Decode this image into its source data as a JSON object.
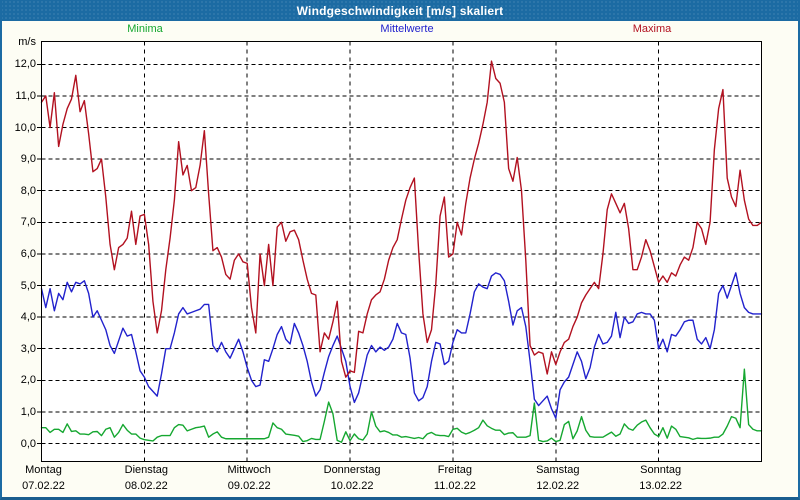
{
  "window": {
    "title": "Windgeschwindigkeit [m/s] skaliert"
  },
  "colors": {
    "titlebar": "#1c6ba3",
    "window_border": "#1c6ba3",
    "background": "#fdfdf4",
    "plot_background": "#ffffff",
    "grid": "#000000",
    "axis_text": "#000000",
    "minima": "#15a730",
    "mittelwerte": "#2222cd",
    "maxima": "#b21120"
  },
  "chart_data": {
    "type": "line",
    "title": "Windgeschwindigkeit [m/s] skaliert",
    "ylabel": "m/s",
    "ylim": [
      0,
      12
    ],
    "grid": "dashed",
    "legend_position": "top",
    "sample_interval_hours": 1,
    "y_ticks": [
      {
        "value": 0,
        "label": "0,0"
      },
      {
        "value": 1,
        "label": "1,0"
      },
      {
        "value": 2,
        "label": "2,0"
      },
      {
        "value": 3,
        "label": "3,0"
      },
      {
        "value": 4,
        "label": "4,0"
      },
      {
        "value": 5,
        "label": "5,0"
      },
      {
        "value": 6,
        "label": "6,0"
      },
      {
        "value": 7,
        "label": "7,0"
      },
      {
        "value": 8,
        "label": "8,0"
      },
      {
        "value": 9,
        "label": "9,0"
      },
      {
        "value": 10,
        "label": "10,0"
      },
      {
        "value": 11,
        "label": "11,0"
      },
      {
        "value": 12,
        "label": "12,0"
      }
    ],
    "x_days": [
      {
        "name": "Montag",
        "date": "07.02.22"
      },
      {
        "name": "Dienstag",
        "date": "08.02.22"
      },
      {
        "name": "Mittwoch",
        "date": "09.02.22"
      },
      {
        "name": "Donnerstag",
        "date": "10.02.22"
      },
      {
        "name": "Freitag",
        "date": "11.02.22"
      },
      {
        "name": "Samstag",
        "date": "12.02.22"
      },
      {
        "name": "Sonntag",
        "date": "13.02.22"
      }
    ],
    "series": [
      {
        "name": "Minima",
        "color": "#15a730",
        "values": [
          0.5,
          0.5,
          0.35,
          0.45,
          0.45,
          0.35,
          0.62,
          0.38,
          0.4,
          0.3,
          0.3,
          0.28,
          0.37,
          0.38,
          0.25,
          0.45,
          0.5,
          0.2,
          0.35,
          0.6,
          0.42,
          0.3,
          0.3,
          0.17,
          0.12,
          0.1,
          0.08,
          0.2,
          0.25,
          0.25,
          0.25,
          0.5,
          0.6,
          0.58,
          0.4,
          0.45,
          0.5,
          0.52,
          0.55,
          0.2,
          0.3,
          0.37,
          0.2,
          0.15,
          0.15,
          0.15,
          0.15,
          0.15,
          0.15,
          0.15,
          0.15,
          0.15,
          0.15,
          0.2,
          0.65,
          0.5,
          0.45,
          0.3,
          0.28,
          0.26,
          0.23,
          0.06,
          0.09,
          0.16,
          0.13,
          0.13,
          0.7,
          1.31,
          0.94,
          0.1,
          0.04,
          0.37,
          0.09,
          0.3,
          0.15,
          0.11,
          0.3,
          1.0,
          0.55,
          0.37,
          0.4,
          0.35,
          0.27,
          0.27,
          0.2,
          0.22,
          0.19,
          0.16,
          0.19,
          0.15,
          0.3,
          0.35,
          0.27,
          0.25,
          0.25,
          0.22,
          0.45,
          0.48,
          0.36,
          0.3,
          0.35,
          0.42,
          0.5,
          0.74,
          0.56,
          0.48,
          0.42,
          0.42,
          0.28,
          0.33,
          0.34,
          0.2,
          0.2,
          0.2,
          0.25,
          1.28,
          0.1,
          0.06,
          0.08,
          0.17,
          0.06,
          0.1,
          0.6,
          0.7,
          0.15,
          0.4,
          0.85,
          0.42,
          0.22,
          0.2,
          0.2,
          0.2,
          0.28,
          0.36,
          0.23,
          0.3,
          0.62,
          0.47,
          0.42,
          0.58,
          0.68,
          0.74,
          0.5,
          0.3,
          0.22,
          0.5,
          0.17,
          0.55,
          0.45,
          0.22,
          0.2,
          0.18,
          0.13,
          0.17,
          0.16,
          0.16,
          0.17,
          0.2,
          0.2,
          0.3,
          0.55,
          0.85,
          0.8,
          0.5,
          2.35,
          0.6,
          0.45,
          0.4,
          0.4
        ]
      },
      {
        "name": "Mittelwerte",
        "color": "#2222cd",
        "values": [
          4.9,
          4.3,
          4.9,
          4.2,
          4.75,
          4.55,
          5.1,
          4.8,
          5.1,
          5.05,
          5.15,
          4.75,
          4.0,
          4.2,
          3.9,
          3.6,
          3.1,
          2.85,
          3.25,
          3.65,
          3.4,
          3.45,
          2.9,
          2.3,
          2.1,
          1.8,
          1.65,
          1.5,
          2.2,
          3.0,
          3.0,
          3.5,
          4.1,
          4.3,
          4.1,
          4.15,
          4.2,
          4.25,
          4.4,
          4.4,
          3.1,
          2.9,
          3.2,
          2.9,
          2.7,
          3.0,
          3.3,
          2.9,
          2.4,
          2.0,
          1.8,
          1.85,
          2.65,
          2.6,
          3.0,
          3.45,
          3.7,
          3.3,
          3.15,
          3.8,
          3.5,
          3.1,
          2.6,
          1.95,
          1.5,
          1.7,
          2.25,
          2.75,
          3.1,
          3.4,
          3.0,
          2.6,
          1.8,
          1.3,
          1.6,
          2.2,
          2.8,
          3.1,
          2.9,
          3.05,
          2.95,
          3.05,
          3.3,
          3.8,
          3.5,
          3.45,
          2.7,
          1.6,
          1.35,
          1.45,
          1.8,
          2.6,
          3.2,
          3.15,
          2.5,
          2.6,
          3.2,
          3.6,
          3.5,
          3.5,
          4.1,
          4.8,
          5.05,
          4.95,
          4.9,
          5.3,
          5.4,
          5.35,
          5.15,
          4.5,
          3.75,
          4.2,
          4.3,
          3.7,
          2.6,
          1.4,
          1.2,
          1.35,
          1.5,
          1.1,
          0.8,
          1.7,
          1.95,
          2.1,
          2.5,
          2.9,
          2.6,
          2.05,
          2.4,
          3.05,
          3.45,
          3.15,
          3.2,
          3.4,
          4.15,
          3.35,
          4.0,
          3.8,
          3.85,
          4.1,
          4.15,
          4.1,
          4.1,
          3.9,
          3.0,
          3.3,
          2.9,
          3.45,
          3.4,
          3.6,
          3.85,
          3.9,
          3.9,
          3.3,
          3.15,
          3.35,
          3.0,
          3.6,
          4.75,
          5.0,
          4.6,
          5.0,
          5.4,
          4.75,
          4.3,
          4.15,
          4.1,
          4.1,
          4.1
        ]
      },
      {
        "name": "Maxima",
        "color": "#b21120",
        "values": [
          10.8,
          11.0,
          10.0,
          11.1,
          9.4,
          10.1,
          10.6,
          10.9,
          11.65,
          10.5,
          10.85,
          9.8,
          8.6,
          8.7,
          9.0,
          7.8,
          6.3,
          5.5,
          6.2,
          6.3,
          6.5,
          7.35,
          6.3,
          7.2,
          7.25,
          6.3,
          4.5,
          3.5,
          4.2,
          5.5,
          6.5,
          7.7,
          9.55,
          8.5,
          8.8,
          8.0,
          8.1,
          8.8,
          9.9,
          7.9,
          6.1,
          6.2,
          5.9,
          5.35,
          5.2,
          5.8,
          6.0,
          5.75,
          5.7,
          4.3,
          3.5,
          6.0,
          5.0,
          6.3,
          5.0,
          6.85,
          7.0,
          6.4,
          6.7,
          6.75,
          6.45,
          5.8,
          5.2,
          4.75,
          4.7,
          2.9,
          3.5,
          3.3,
          3.85,
          4.5,
          2.6,
          2.1,
          2.3,
          2.25,
          3.55,
          3.5,
          4.1,
          4.55,
          4.7,
          4.8,
          5.2,
          5.8,
          6.2,
          6.45,
          7.1,
          7.7,
          8.1,
          8.4,
          6.1,
          4.1,
          3.2,
          3.6,
          5.05,
          7.2,
          7.8,
          5.9,
          6.0,
          7.0,
          6.6,
          7.6,
          8.4,
          9.0,
          9.5,
          10.1,
          10.8,
          12.1,
          11.55,
          11.4,
          10.8,
          8.7,
          8.3,
          9.05,
          8.0,
          5.8,
          3.1,
          2.8,
          2.9,
          2.85,
          2.2,
          2.9,
          2.5,
          2.9,
          3.2,
          3.3,
          3.7,
          4.0,
          4.45,
          4.7,
          4.9,
          5.1,
          4.9,
          6.0,
          7.4,
          7.9,
          7.6,
          7.3,
          7.6,
          6.8,
          5.5,
          5.5,
          5.9,
          6.45,
          6.1,
          5.6,
          5.1,
          5.3,
          5.1,
          5.4,
          5.3,
          5.65,
          5.9,
          5.8,
          6.2,
          7.0,
          6.8,
          6.3,
          7.0,
          9.3,
          10.6,
          11.2,
          8.4,
          7.8,
          7.5,
          8.65,
          7.7,
          7.1,
          6.9,
          6.9,
          7.0
        ]
      }
    ]
  }
}
